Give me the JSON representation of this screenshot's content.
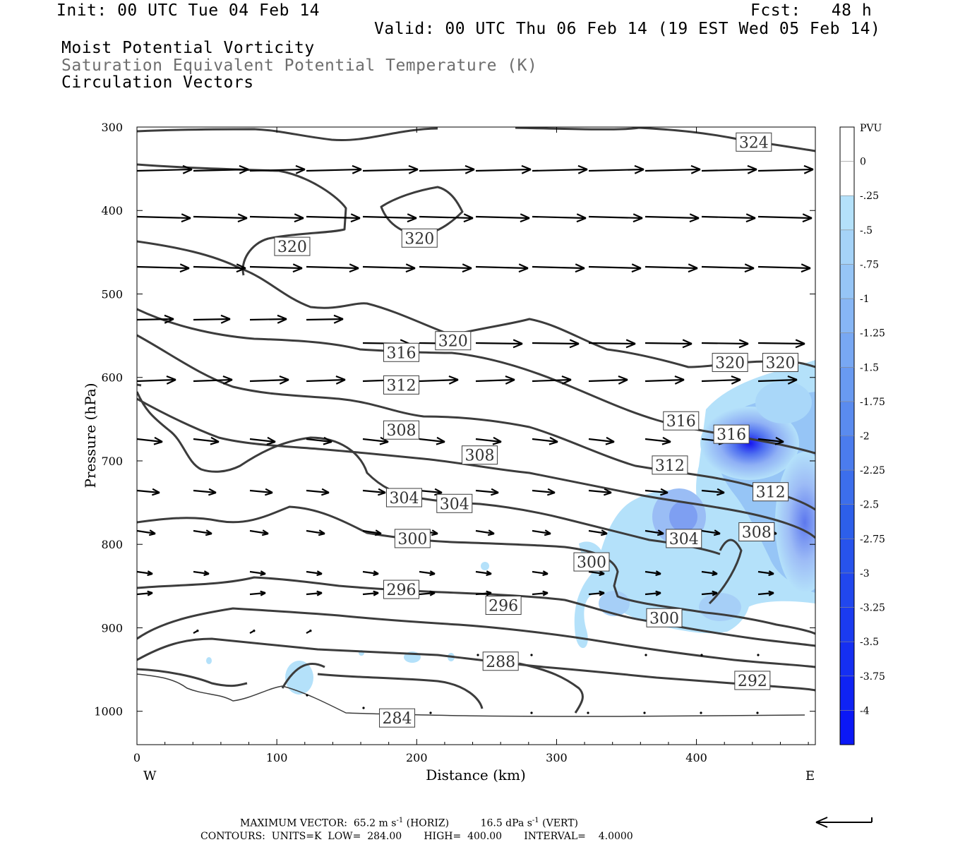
{
  "header": {
    "init": "Init: 00 UTC Tue 04 Feb 14",
    "fcst": "Fcst:   48 h",
    "valid": "Valid: 00 UTC Thu 06 Feb 14 (19 EST Wed 05 Feb 14)",
    "line1": "Moist Potential Vorticity",
    "line2": "Saturation Equivalent Potential Temperature (K)",
    "line3": "Circulation Vectors"
  },
  "footer": {
    "max_vector_label": "MAXIMUM VECTOR:",
    "max_horiz": "65.2 m s",
    "max_horiz_unit": " (HORIZ)",
    "max_vert": "16.5 dPa s",
    "max_vert_unit": " (VERT)",
    "contours": "CONTOURS:  UNITS=K  LOW=  284.00       HIGH=  400.00       INTERVAL=    4.0000"
  },
  "colors": {
    "contour": "#3c3c3c",
    "vector": "#000000",
    "shade_light": "#b4e1fa",
    "shade_deep": "#1414f0"
  },
  "chart_data": {
    "type": "cross-section",
    "xlabel": "Distance (km)",
    "ylabel": "Pressure (hPa)",
    "xlim": [
      0,
      485
    ],
    "ylim": [
      1040,
      300
    ],
    "x_ticks": [
      0,
      100,
      200,
      300,
      400
    ],
    "y_ticks": [
      300,
      400,
      500,
      600,
      700,
      800,
      900,
      1000
    ],
    "left_end_label": "W",
    "right_end_label": "E",
    "colorbar": {
      "unit": "PVU",
      "labels": [
        "0",
        "-.25",
        "-.5",
        "-.75",
        "-1",
        "-1.25",
        "-1.5",
        "-1.75",
        "-2",
        "-2.25",
        "-2.5",
        "-2.75",
        "-3",
        "-3.25",
        "-3.5",
        "-3.75",
        "-4"
      ],
      "colors": [
        "#ffffff",
        "#ffffff",
        "#b4e1fa",
        "#a5d3f8",
        "#96c5f6",
        "#87b6f5",
        "#78a8f3",
        "#699af1",
        "#5a8bef",
        "#4b7cee",
        "#3c6eec",
        "#2d5fea",
        "#2753ec",
        "#2147ee",
        "#1b3bf0",
        "#152ff2",
        "#0f23f4"
      ]
    },
    "contour_labels": [
      {
        "text": "324",
        "x": 441,
        "p": 318
      },
      {
        "text": "320",
        "x": 111,
        "p": 443
      },
      {
        "text": "320",
        "x": 202,
        "p": 433
      },
      {
        "text": "320",
        "x": 226,
        "p": 556
      },
      {
        "text": "320",
        "x": 424,
        "p": 582
      },
      {
        "text": "320",
        "x": 460,
        "p": 582
      },
      {
        "text": "316",
        "x": 189,
        "p": 570
      },
      {
        "text": "316",
        "x": 389,
        "p": 652
      },
      {
        "text": "316",
        "x": 425,
        "p": 668
      },
      {
        "text": "312",
        "x": 189,
        "p": 609
      },
      {
        "text": "312",
        "x": 381,
        "p": 705
      },
      {
        "text": "312",
        "x": 453,
        "p": 737
      },
      {
        "text": "308",
        "x": 189,
        "p": 663
      },
      {
        "text": "308",
        "x": 245,
        "p": 693
      },
      {
        "text": "308",
        "x": 443,
        "p": 785
      },
      {
        "text": "304",
        "x": 191,
        "p": 744
      },
      {
        "text": "304",
        "x": 227,
        "p": 751
      },
      {
        "text": "304",
        "x": 391,
        "p": 793
      },
      {
        "text": "300",
        "x": 197,
        "p": 793
      },
      {
        "text": "300",
        "x": 325,
        "p": 821
      },
      {
        "text": "300",
        "x": 377,
        "p": 888
      },
      {
        "text": "296",
        "x": 189,
        "p": 854
      },
      {
        "text": "296",
        "x": 262,
        "p": 873
      },
      {
        "text": "292",
        "x": 440,
        "p": 963
      },
      {
        "text": "288",
        "x": 260,
        "p": 940
      },
      {
        "text": "284",
        "x": 186,
        "p": 1008
      }
    ]
  }
}
